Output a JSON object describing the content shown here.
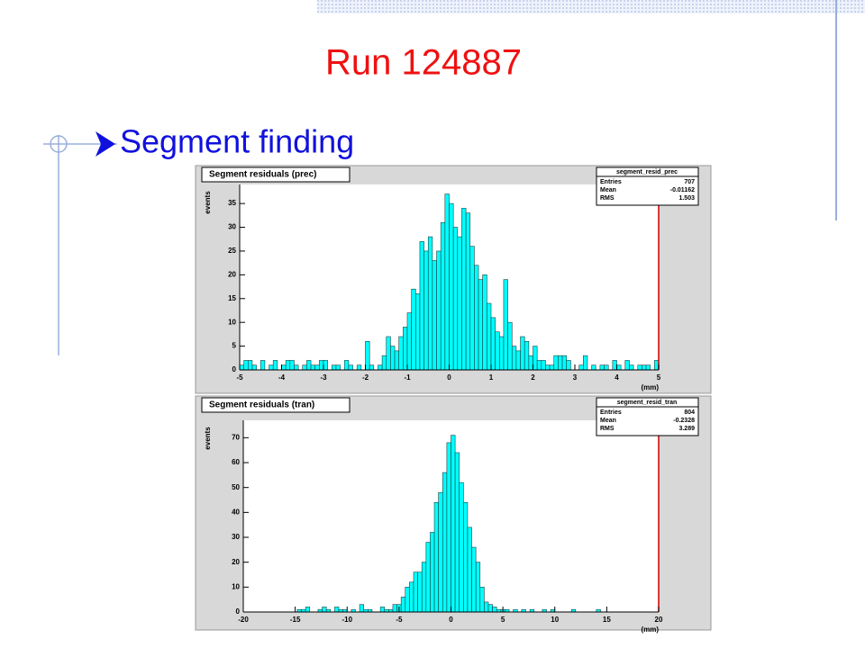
{
  "title": "Run 124887",
  "bullet": "Segment finding",
  "chart_data": [
    {
      "type": "histogram",
      "title": "Segment residuals (prec)",
      "stats": {
        "name": "segment_resid_prec",
        "labels": [
          "Entries",
          "Mean",
          "RMS"
        ],
        "values": [
          707,
          -0.01162,
          1.503
        ]
      },
      "ylabel": "events",
      "xlabel": "(mm)",
      "color": "#00ffff",
      "xlim": [
        -5,
        5
      ],
      "ylim": [
        0,
        39
      ],
      "xticks": [
        -5,
        -4,
        -3,
        -2,
        -1,
        0,
        1,
        2,
        3,
        4,
        5
      ],
      "yticks": [
        0,
        5,
        10,
        15,
        20,
        25,
        30,
        35
      ],
      "bins": [
        -5,
        -4.9,
        -4.8,
        -4.7,
        -4.6,
        -4.5,
        -4.4,
        -4.3,
        -4.2,
        -4.1,
        -4,
        -3.9,
        -3.8,
        -3.7,
        -3.6,
        -3.5,
        -3.4,
        -3.3,
        -3.2,
        -3.1,
        -3,
        -2.9,
        -2.8,
        -2.7,
        -2.6,
        -2.5,
        -2.4,
        -2.3,
        -2.2,
        -2.1,
        -2,
        -1.9,
        -1.8,
        -1.7,
        -1.6,
        -1.5,
        -1.4,
        -1.3,
        -1.2,
        -1.1,
        -1,
        -0.9,
        -0.8,
        -0.7,
        -0.6,
        -0.5,
        -0.4,
        -0.3,
        -0.2,
        -0.1,
        0,
        0.1,
        0.2,
        0.3,
        0.4,
        0.5,
        0.6,
        0.7,
        0.8,
        0.9,
        1,
        1.1,
        1.2,
        1.3,
        1.4,
        1.5,
        1.6,
        1.7,
        1.8,
        1.9,
        2,
        2.1,
        2.2,
        2.3,
        2.4,
        2.5,
        2.6,
        2.7,
        2.8,
        2.9,
        3,
        3.1,
        3.2,
        3.3,
        3.4,
        3.5,
        3.6,
        3.7,
        3.8,
        3.9,
        4,
        4.1,
        4.2,
        4.3,
        4.4,
        4.5,
        4.6,
        4.7,
        4.8,
        4.9,
        5
      ],
      "values": [
        1,
        2,
        2,
        1,
        0,
        2,
        0,
        1,
        2,
        0,
        1,
        2,
        2,
        1,
        0,
        1,
        2,
        1,
        1,
        2,
        2,
        0,
        1,
        1,
        0,
        2,
        1,
        0,
        1,
        0,
        6,
        1,
        0,
        1,
        3,
        7,
        5,
        4,
        7,
        9,
        12,
        17,
        16,
        27,
        25,
        28,
        23,
        25,
        31,
        37,
        35,
        30,
        28,
        34,
        33,
        26,
        22,
        19,
        20,
        14,
        11,
        8,
        7,
        19,
        10,
        5,
        4,
        7,
        6,
        3,
        5,
        2,
        2,
        1,
        1,
        3,
        3,
        3,
        2,
        0,
        0,
        1,
        3,
        0,
        1,
        0,
        1,
        1,
        0,
        2,
        1,
        0,
        2,
        1,
        0,
        1,
        1,
        1,
        0,
        2
      ]
    },
    {
      "type": "histogram",
      "title": "Segment residuals (tran)",
      "stats": {
        "name": "segment_resid_tran",
        "labels": [
          "Entries",
          "Mean",
          "RMS"
        ],
        "values": [
          804,
          -0.2328,
          3.289
        ]
      },
      "ylabel": "events",
      "xlabel": "(mm)",
      "color": "#00ffff",
      "xlim": [
        -20,
        20
      ],
      "ylim": [
        0,
        77
      ],
      "xticks": [
        -20,
        -15,
        -10,
        -5,
        0,
        5,
        10,
        15,
        20
      ],
      "yticks": [
        0,
        10,
        20,
        30,
        40,
        50,
        60,
        70
      ],
      "bins": [
        -20,
        -19.6,
        -19.2,
        -18.8,
        -18.4,
        -18,
        -17.6,
        -17.2,
        -16.8,
        -16.4,
        -16,
        -15.6,
        -15.2,
        -14.8,
        -14.4,
        -14,
        -13.6,
        -13.2,
        -12.8,
        -12.4,
        -12,
        -11.6,
        -11.2,
        -10.8,
        -10.4,
        -10,
        -9.6,
        -9.2,
        -8.8,
        -8.4,
        -8,
        -7.6,
        -7.2,
        -6.8,
        -6.4,
        -6,
        -5.6,
        -5.2,
        -4.8,
        -4.4,
        -4,
        -3.6,
        -3.2,
        -2.8,
        -2.4,
        -2,
        -1.6,
        -1.2,
        -0.8,
        -0.4,
        0,
        0.4,
        0.8,
        1.2,
        1.6,
        2,
        2.4,
        2.8,
        3.2,
        3.6,
        4,
        4.4,
        4.8,
        5.2,
        5.6,
        6,
        6.4,
        6.8,
        7.2,
        7.6,
        8,
        8.4,
        8.8,
        9.2,
        9.6,
        10,
        10.4,
        10.8,
        11.2,
        11.6,
        12,
        12.4,
        12.8,
        13.2,
        13.6,
        14,
        14.4,
        14.8,
        15.2,
        15.6,
        16,
        16.4,
        16.8,
        17.2,
        17.6,
        18,
        18.4,
        18.8,
        19.2,
        19.6,
        20
      ],
      "values": [
        0,
        0,
        0,
        0,
        0,
        0,
        0,
        0,
        0,
        0,
        0,
        0,
        0,
        1,
        1,
        2,
        0,
        0,
        1,
        2,
        1,
        0,
        2,
        1,
        1,
        0,
        1,
        0,
        3,
        1,
        1,
        0,
        0,
        2,
        1,
        1,
        3,
        3,
        6,
        10,
        12,
        16,
        16,
        20,
        28,
        32,
        44,
        48,
        56,
        68,
        71,
        64,
        52,
        44,
        34,
        26,
        20,
        10,
        4,
        3,
        2,
        1,
        1,
        1,
        0,
        1,
        0,
        1,
        0,
        1,
        0,
        0,
        1,
        0,
        1,
        0,
        0,
        0,
        0,
        1,
        0,
        0,
        0,
        0,
        0,
        1,
        0,
        0,
        0,
        0,
        0,
        0,
        0,
        0,
        0,
        0,
        0,
        0,
        0,
        0
      ]
    }
  ]
}
